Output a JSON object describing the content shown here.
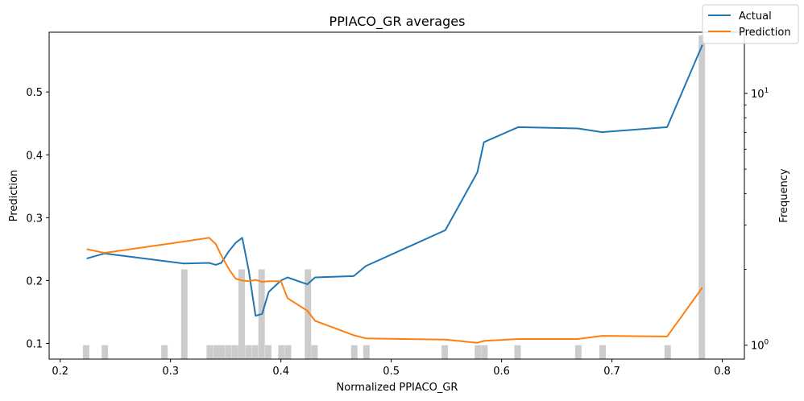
{
  "chart_data": {
    "type": "line",
    "title": "PPIACO_GR averages",
    "xlabel": "Normalized PPIACO_GR",
    "ylabel": "Prediction",
    "y2label": "Frequency",
    "xlim": [
      0.19,
      0.82
    ],
    "ylim": [
      0.075,
      0.595
    ],
    "y2lim_log": [
      0.88,
      17.5
    ],
    "y2scale": "log",
    "xticks": [
      0.2,
      0.3,
      0.4,
      0.5,
      0.6,
      0.7,
      0.8
    ],
    "xtick_labels": [
      "0.2",
      "0.3",
      "0.4",
      "0.5",
      "0.6",
      "0.7",
      "0.8"
    ],
    "yticks": [
      0.1,
      0.2,
      0.3,
      0.4,
      0.5
    ],
    "ytick_labels": [
      "0.1",
      "0.2",
      "0.3",
      "0.4",
      "0.5"
    ],
    "y2ticks": [
      1,
      10
    ],
    "y2tick_labels": [
      "10<sup>0</sup>",
      "10<sup>1</sup>"
    ],
    "legend_position": "top-right",
    "series": [
      {
        "name": "Actual",
        "color": "#1f77b4",
        "x": [
          0.224,
          0.24,
          0.312,
          0.335,
          0.341,
          0.346,
          0.353,
          0.359,
          0.365,
          0.371,
          0.377,
          0.383,
          0.389,
          0.4,
          0.406,
          0.424,
          0.431,
          0.466,
          0.477,
          0.549,
          0.578,
          0.584,
          0.615,
          0.669,
          0.691,
          0.75,
          0.782
        ],
        "y": [
          0.235,
          0.243,
          0.227,
          0.228,
          0.225,
          0.228,
          0.247,
          0.26,
          0.268,
          0.215,
          0.144,
          0.147,
          0.182,
          0.2,
          0.205,
          0.194,
          0.205,
          0.207,
          0.223,
          0.28,
          0.372,
          0.42,
          0.444,
          0.442,
          0.436,
          0.444,
          0.575
        ]
      },
      {
        "name": "Prediction",
        "color": "#ff7f0e",
        "x": [
          0.224,
          0.24,
          0.312,
          0.335,
          0.341,
          0.346,
          0.353,
          0.359,
          0.365,
          0.371,
          0.377,
          0.383,
          0.389,
          0.4,
          0.406,
          0.424,
          0.431,
          0.466,
          0.477,
          0.549,
          0.578,
          0.584,
          0.615,
          0.669,
          0.691,
          0.75,
          0.782
        ],
        "y": [
          0.25,
          0.244,
          0.262,
          0.268,
          0.258,
          0.24,
          0.218,
          0.203,
          0.2,
          0.199,
          0.201,
          0.198,
          0.199,
          0.199,
          0.172,
          0.152,
          0.136,
          0.113,
          0.108,
          0.106,
          0.101,
          0.104,
          0.107,
          0.107,
          0.112,
          0.111,
          0.189
        ]
      }
    ],
    "histogram": {
      "color": "#cccccc",
      "bins": [
        {
          "x": 0.2235,
          "count": 1
        },
        {
          "x": 0.2405,
          "count": 1
        },
        {
          "x": 0.2945,
          "count": 1
        },
        {
          "x": 0.3125,
          "count": 2
        },
        {
          "x": 0.3355,
          "count": 1
        },
        {
          "x": 0.3415,
          "count": 1
        },
        {
          "x": 0.3465,
          "count": 1
        },
        {
          "x": 0.3525,
          "count": 1
        },
        {
          "x": 0.3585,
          "count": 1
        },
        {
          "x": 0.3645,
          "count": 2
        },
        {
          "x": 0.3705,
          "count": 1
        },
        {
          "x": 0.3765,
          "count": 1
        },
        {
          "x": 0.3825,
          "count": 2
        },
        {
          "x": 0.3885,
          "count": 1
        },
        {
          "x": 0.4005,
          "count": 1
        },
        {
          "x": 0.4065,
          "count": 1
        },
        {
          "x": 0.4245,
          "count": 2
        },
        {
          "x": 0.4305,
          "count": 1
        },
        {
          "x": 0.4665,
          "count": 1
        },
        {
          "x": 0.4775,
          "count": 1
        },
        {
          "x": 0.5485,
          "count": 1
        },
        {
          "x": 0.5785,
          "count": 1
        },
        {
          "x": 0.5845,
          "count": 1
        },
        {
          "x": 0.6145,
          "count": 1
        },
        {
          "x": 0.6695,
          "count": 1
        },
        {
          "x": 0.6915,
          "count": 1
        },
        {
          "x": 0.7505,
          "count": 1
        },
        {
          "x": 0.7815,
          "count": 17
        }
      ]
    }
  }
}
